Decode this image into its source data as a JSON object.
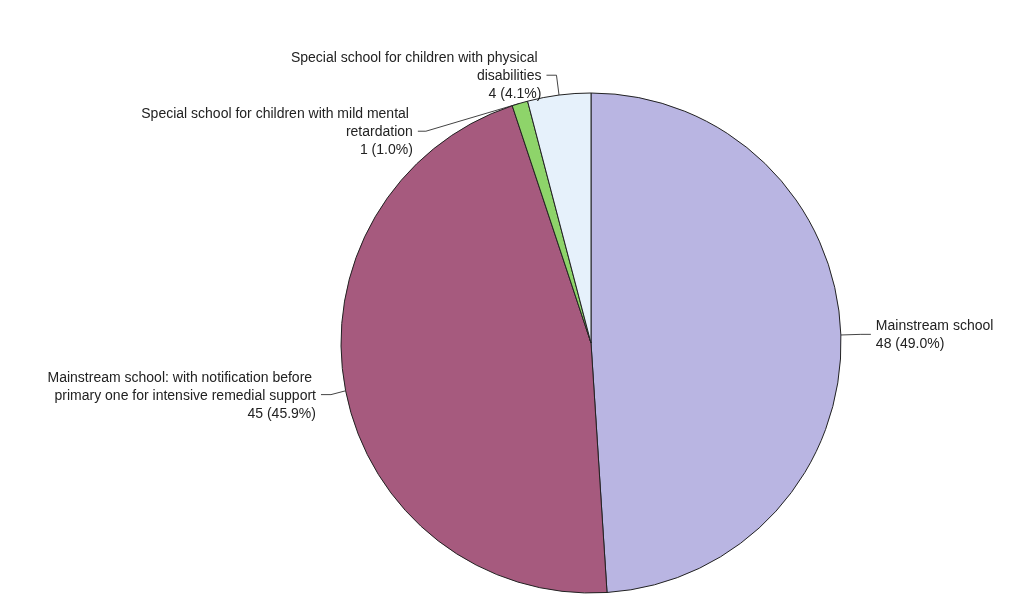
{
  "chart_data": {
    "type": "pie",
    "categories": [
      "Mainstream school",
      "Mainstream school: with notification before primary one for intensive remedial support",
      "Special school for children with mild mental retardation",
      "Special school for children with physical disabilities"
    ],
    "values": [
      48,
      45,
      1,
      4
    ],
    "value_labels": [
      "48 (49.0%)",
      "45 (45.9%)",
      "1 (1.0%)",
      "4 (4.1%)"
    ],
    "colors": [
      "#b9b5e2",
      "#a65a7e",
      "#8ed46a",
      "#e6f1fb"
    ],
    "legend": false
  }
}
